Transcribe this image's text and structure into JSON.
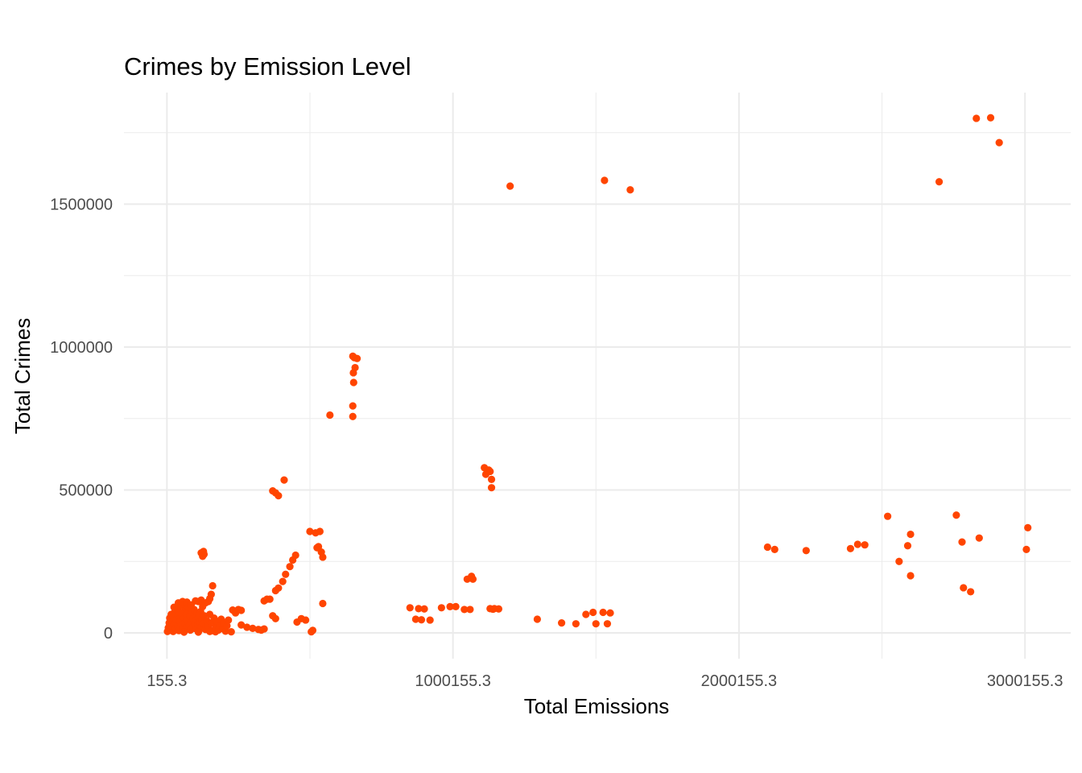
{
  "chart_data": {
    "type": "scatter",
    "title": "Crimes by Emission Level",
    "xlabel": "Total Emissions",
    "ylabel": "Total Crimes",
    "xlim": [
      -150000,
      3160000
    ],
    "ylim": [
      -90000,
      1890000
    ],
    "x_ticks": [
      155.3,
      1000155.3,
      2000155.3,
      3000155.3
    ],
    "x_tick_labels": [
      "155.3",
      "1000155.3",
      "2000155.3",
      "3000155.3"
    ],
    "y_ticks": [
      0,
      500000,
      1000000,
      1500000
    ],
    "y_tick_labels": [
      "0",
      "500000",
      "1000000",
      "1500000"
    ],
    "grid": true,
    "point_color": "#FF4500",
    "points": [
      [
        1200000,
        1563000
      ],
      [
        1530000,
        1583000
      ],
      [
        1620000,
        1550000
      ],
      [
        2830000,
        1800000
      ],
      [
        2880000,
        1802000
      ],
      [
        2910000,
        1715000
      ],
      [
        2700000,
        1578000
      ],
      [
        650000,
        968000
      ],
      [
        655000,
        963000
      ],
      [
        665000,
        960000
      ],
      [
        658000,
        928000
      ],
      [
        652000,
        910000
      ],
      [
        653000,
        876000
      ],
      [
        650000,
        794000
      ],
      [
        650000,
        757000
      ],
      [
        570000,
        762000
      ],
      [
        370000,
        497000
      ],
      [
        380000,
        490000
      ],
      [
        390000,
        480000
      ],
      [
        410000,
        535000
      ],
      [
        1110000,
        578000
      ],
      [
        1125000,
        570000
      ],
      [
        1115000,
        555000
      ],
      [
        1130000,
        565000
      ],
      [
        1135000,
        537000
      ],
      [
        1135000,
        508000
      ],
      [
        500000,
        355000
      ],
      [
        520000,
        350000
      ],
      [
        535000,
        355000
      ],
      [
        525000,
        298000
      ],
      [
        540000,
        283000
      ],
      [
        545000,
        265000
      ],
      [
        530000,
        302000
      ],
      [
        545000,
        103000
      ],
      [
        450000,
        272000
      ],
      [
        440000,
        255000
      ],
      [
        430000,
        232000
      ],
      [
        415000,
        205000
      ],
      [
        405000,
        180000
      ],
      [
        390000,
        157000
      ],
      [
        380000,
        148000
      ],
      [
        455000,
        38000
      ],
      [
        470000,
        50000
      ],
      [
        485000,
        45000
      ],
      [
        370000,
        60000
      ],
      [
        380000,
        50000
      ],
      [
        360000,
        118000
      ],
      [
        340000,
        112000
      ],
      [
        350000,
        118000
      ],
      [
        505000,
        4000
      ],
      [
        510000,
        9000
      ],
      [
        300000,
        16000
      ],
      [
        320000,
        12000
      ],
      [
        330000,
        10000
      ],
      [
        340000,
        14000
      ],
      [
        260000,
        28000
      ],
      [
        280000,
        20000
      ],
      [
        170000,
        4000
      ],
      [
        225000,
        4000
      ],
      [
        230000,
        80000
      ],
      [
        240000,
        70000
      ],
      [
        250000,
        82000
      ],
      [
        260000,
        79000
      ],
      [
        120000,
        280000
      ],
      [
        125000,
        268000
      ],
      [
        130000,
        275000
      ],
      [
        128000,
        285000
      ],
      [
        160000,
        165000
      ],
      [
        155000,
        135000
      ],
      [
        150000,
        120000
      ],
      [
        145000,
        110000
      ],
      [
        135000,
        105000
      ],
      [
        120000,
        115000
      ],
      [
        110000,
        110000
      ],
      [
        100000,
        112000
      ],
      [
        850000,
        88000
      ],
      [
        880000,
        85000
      ],
      [
        900000,
        84000
      ],
      [
        870000,
        48000
      ],
      [
        890000,
        46000
      ],
      [
        920000,
        45000
      ],
      [
        960000,
        88000
      ],
      [
        990000,
        92000
      ],
      [
        1010000,
        92000
      ],
      [
        1050000,
        188000
      ],
      [
        1065000,
        198000
      ],
      [
        1070000,
        188000
      ],
      [
        1060000,
        82000
      ],
      [
        1130000,
        85000
      ],
      [
        1140000,
        83000
      ],
      [
        1145000,
        85000
      ],
      [
        1295000,
        48000
      ],
      [
        1430000,
        32000
      ],
      [
        1500000,
        32000
      ],
      [
        1540000,
        32000
      ],
      [
        1380000,
        35000
      ],
      [
        1465000,
        65000
      ],
      [
        1490000,
        72000
      ],
      [
        1525000,
        72000
      ],
      [
        1550000,
        70000
      ],
      [
        1160000,
        84000
      ],
      [
        1040000,
        82000
      ],
      [
        2100000,
        300000
      ],
      [
        2125000,
        292000
      ],
      [
        2235000,
        288000
      ],
      [
        2390000,
        295000
      ],
      [
        2415000,
        310000
      ],
      [
        2440000,
        308000
      ],
      [
        2520000,
        408000
      ],
      [
        2560000,
        250000
      ],
      [
        2590000,
        305000
      ],
      [
        2600000,
        345000
      ],
      [
        2600000,
        200000
      ],
      [
        2760000,
        412000
      ],
      [
        2780000,
        318000
      ],
      [
        2785000,
        158000
      ],
      [
        2810000,
        144000
      ],
      [
        2840000,
        332000
      ],
      [
        3010000,
        368000
      ],
      [
        3005000,
        292000
      ],
      [
        2000,
        5000
      ],
      [
        5000,
        18000
      ],
      [
        8000,
        35000
      ],
      [
        10000,
        52000
      ],
      [
        12000,
        10000
      ],
      [
        15000,
        25000
      ],
      [
        18000,
        42000
      ],
      [
        20000,
        60000
      ],
      [
        22000,
        5000
      ],
      [
        25000,
        30000
      ],
      [
        28000,
        75000
      ],
      [
        30000,
        15000
      ],
      [
        32000,
        48000
      ],
      [
        35000,
        88000
      ],
      [
        38000,
        22000
      ],
      [
        40000,
        62000
      ],
      [
        42000,
        8000
      ],
      [
        45000,
        40000
      ],
      [
        48000,
        95000
      ],
      [
        50000,
        28000
      ],
      [
        52000,
        70000
      ],
      [
        55000,
        12000
      ],
      [
        58000,
        55000
      ],
      [
        60000,
        100000
      ],
      [
        62000,
        35000
      ],
      [
        65000,
        80000
      ],
      [
        68000,
        18000
      ],
      [
        70000,
        65000
      ],
      [
        72000,
        45000
      ],
      [
        75000,
        90000
      ],
      [
        78000,
        25000
      ],
      [
        80000,
        58000
      ],
      [
        82000,
        10000
      ],
      [
        85000,
        38000
      ],
      [
        88000,
        72000
      ],
      [
        90000,
        20000
      ],
      [
        92000,
        50000
      ],
      [
        95000,
        82000
      ],
      [
        98000,
        30000
      ],
      [
        100000,
        15000
      ],
      [
        102000,
        45000
      ],
      [
        105000,
        68000
      ],
      [
        108000,
        28000
      ],
      [
        110000,
        55000
      ],
      [
        112000,
        8000
      ],
      [
        115000,
        38000
      ],
      [
        118000,
        75000
      ],
      [
        120000,
        20000
      ],
      [
        122000,
        48000
      ],
      [
        125000,
        92000
      ],
      [
        128000,
        32000
      ],
      [
        130000,
        60000
      ],
      [
        135000,
        12000
      ],
      [
        140000,
        42000
      ],
      [
        145000,
        25000
      ],
      [
        150000,
        65000
      ],
      [
        155000,
        35000
      ],
      [
        160000,
        8000
      ],
      [
        165000,
        52000
      ],
      [
        170000,
        18000
      ],
      [
        175000,
        40000
      ],
      [
        180000,
        10000
      ],
      [
        185000,
        28000
      ],
      [
        190000,
        48000
      ],
      [
        195000,
        15000
      ],
      [
        200000,
        35000
      ],
      [
        205000,
        6000
      ],
      [
        210000,
        25000
      ],
      [
        215000,
        45000
      ],
      [
        150000,
        5000
      ],
      [
        110000,
        3000
      ],
      [
        60000,
        3000
      ],
      [
        30000,
        70000
      ],
      [
        40000,
        105000
      ],
      [
        55000,
        110000
      ],
      [
        70000,
        108000
      ],
      [
        85000,
        98000
      ],
      [
        25000,
        90000
      ],
      [
        15000,
        65000
      ],
      [
        45000,
        72000
      ]
    ]
  }
}
